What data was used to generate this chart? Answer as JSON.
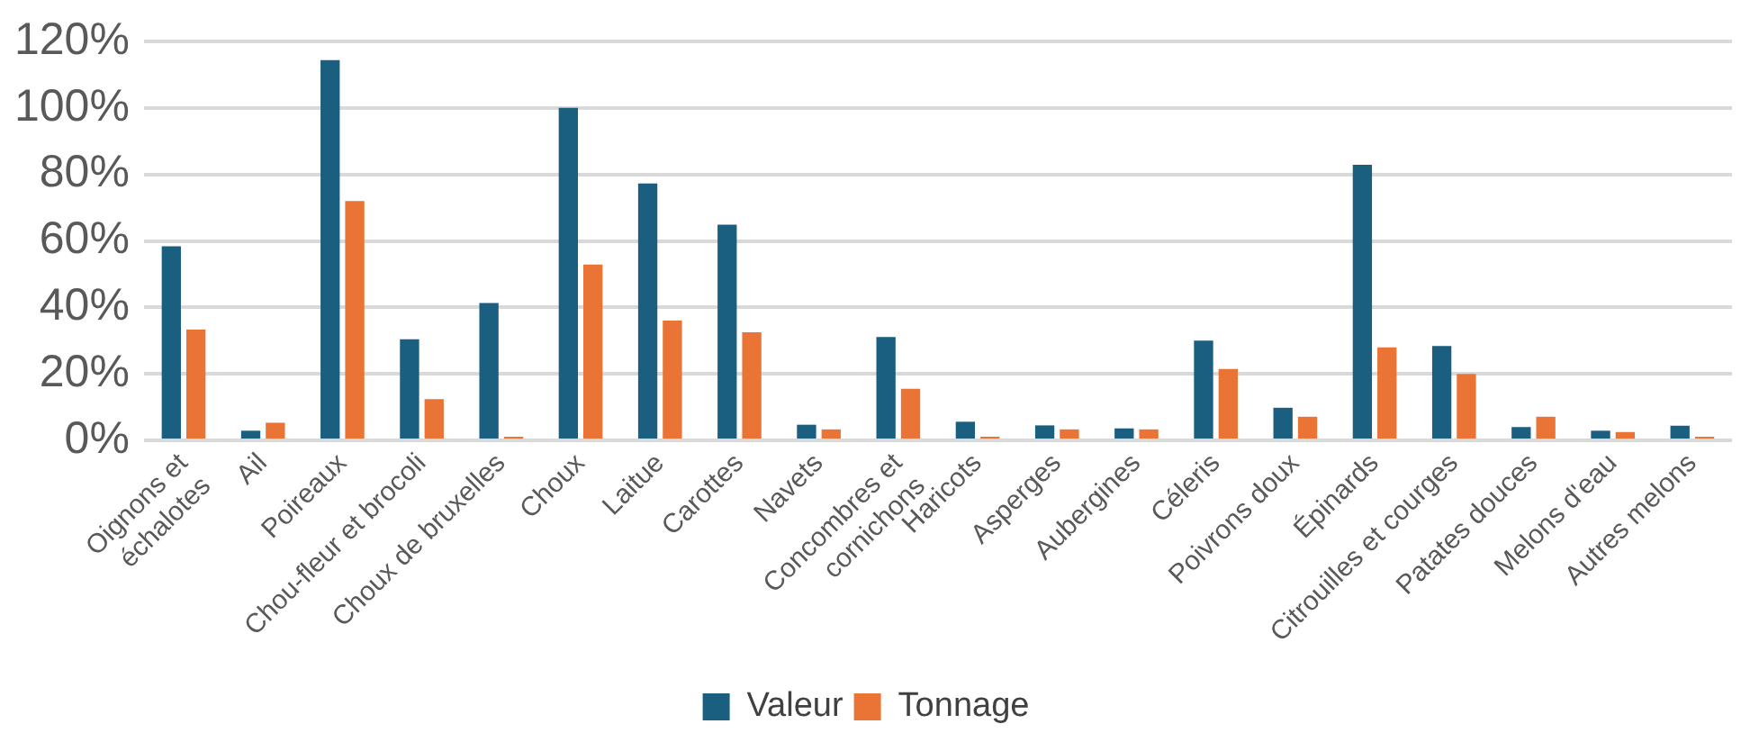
{
  "chart_data": {
    "type": "bar",
    "categories": [
      "Oignons et\néchalotes",
      "Ail",
      "Poireaux",
      "Chou-fleur et brocoli",
      "Choux de bruxelles",
      "Choux",
      "Laitue",
      "Carottes",
      "Navets",
      "Concombres et\ncornichons",
      "Haricots",
      "Asperges",
      "Aubergines",
      "Céleris",
      "Poivrons doux",
      "Épinards",
      "Citrouilles et courges",
      "Patates douces",
      "Melons d'eau",
      "Autres melons"
    ],
    "series": [
      {
        "name": "Valeur",
        "color": "#1a5f80",
        "values": [
          58.4,
          2.9,
          114.4,
          30.4,
          41.3,
          100,
          77.3,
          64.9,
          4.7,
          31.1,
          5.6,
          4.5,
          3.6,
          30,
          9.8,
          82.9,
          28.4,
          4,
          2.9,
          4.4
        ]
      },
      {
        "name": "Tonnage",
        "color": "#e97435",
        "values": [
          33.3,
          5.3,
          72,
          12.4,
          0.5,
          52.9,
          36,
          32.5,
          3.3,
          15.5,
          1.1,
          3.3,
          3.3,
          21.5,
          7.1,
          28,
          20,
          7.1,
          2.5,
          0.9
        ]
      }
    ],
    "ylim": [
      0,
      120
    ],
    "yticks": [
      {
        "value": 0,
        "label": "0%"
      },
      {
        "value": 20,
        "label": "20%"
      },
      {
        "value": 40,
        "label": "40%"
      },
      {
        "value": 60,
        "label": "60%"
      },
      {
        "value": 80,
        "label": "80%"
      },
      {
        "value": 100,
        "label": "100%"
      },
      {
        "value": 120,
        "label": "120%"
      }
    ],
    "grid": "y",
    "legend": "bottom"
  }
}
